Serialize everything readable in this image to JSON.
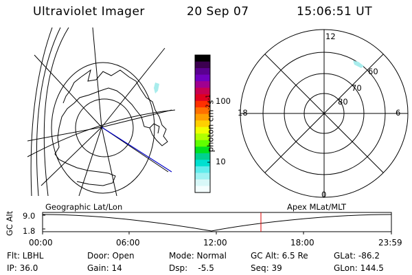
{
  "header": {
    "instrument": "Ultraviolet Imager",
    "date": "20 Sep 07",
    "time": "15:06:51 UT"
  },
  "colorbar": {
    "label_text": "photon cm",
    "label_exp1": "-2",
    "label_s": "s",
    "label_exp2": "-1",
    "ticks": [
      "100",
      "10"
    ],
    "colors": [
      "#000000",
      "#3c0050",
      "#5a0090",
      "#7000c0",
      "#a00090",
      "#c80050",
      "#e00020",
      "#ff3000",
      "#ff7000",
      "#ffa000",
      "#ffd000",
      "#f0ff00",
      "#b0ff00",
      "#60ff00",
      "#00e020",
      "#00d090",
      "#00e0d0",
      "#60ecec",
      "#a0f2f2",
      "#d8f8f8",
      "#f4fefe"
    ]
  },
  "polar_plot": {
    "clock_labels": {
      "top": "12",
      "left": "18",
      "right": "6",
      "bottom": "0"
    },
    "lat_labels": [
      "60",
      "70",
      "80"
    ]
  },
  "timeline": {
    "left_label": "Geographic Lat/Lon",
    "right_label": "Apex MLat/MLT",
    "y_axis_label": "GC Alt",
    "y_ticks": [
      "9.0",
      "1.8"
    ],
    "x_ticks": [
      "00:00",
      "06:00",
      "12:00",
      "18:00",
      "23:59"
    ],
    "marker_color": "#e00000"
  },
  "info": {
    "row1": {
      "filter": "Flt: LBHL",
      "door": "Door: Open",
      "mode": "Mode: Normal",
      "gc_alt": "GC Alt: 6.5 Re",
      "glat": "GLat: -86.2"
    },
    "row2": {
      "ip": "IP: 36.0",
      "gain": "Gain: 14",
      "dsp": "Dsp:    -5.5",
      "seq": "Seq: 39",
      "glon": "GLon: 144.5"
    }
  }
}
